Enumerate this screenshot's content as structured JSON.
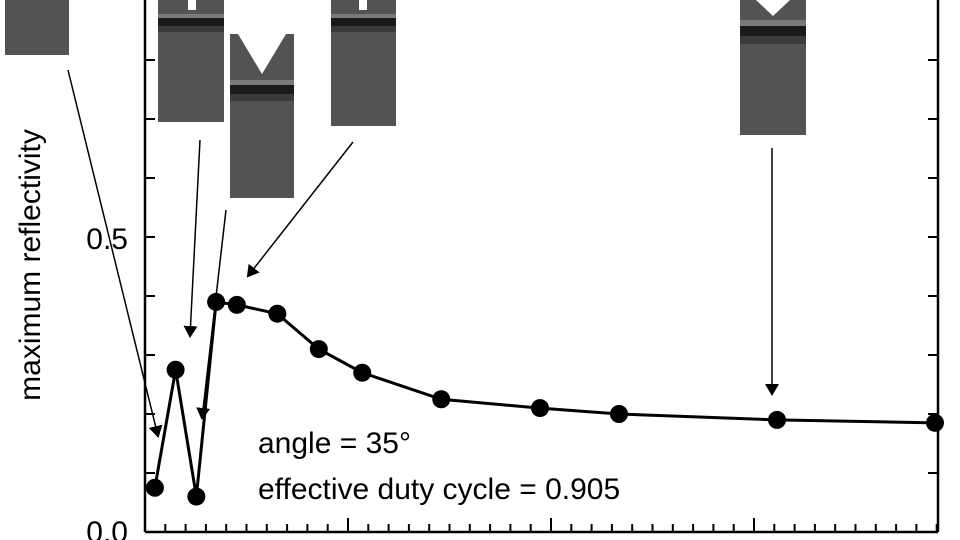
{
  "chart_data": {
    "type": "line",
    "title": "",
    "xlabel": "",
    "ylabel": "maximum reflectivity",
    "ylim": [
      0,
      0.9
    ],
    "y_ticks": [
      {
        "value": 0.5,
        "label": "0.5"
      },
      {
        "value": 0.0,
        "label": "0.0"
      }
    ],
    "series": [
      {
        "x": [
          0.05,
          0.155,
          0.26,
          0.36,
          0.465,
          0.67,
          0.88,
          1.1,
          1.5,
          2.0,
          2.4,
          3.2,
          4.0
        ],
        "values": [
          0.075,
          0.275,
          0.06,
          0.39,
          0.385,
          0.37,
          0.31,
          0.27,
          0.225,
          0.21,
          0.2,
          0.19,
          0.185
        ]
      }
    ],
    "annotations": [
      {
        "text": "angle = 35°"
      },
      {
        "text": "effective duty cycle = 0.905"
      }
    ],
    "grid": false,
    "legend": "none"
  },
  "style": {
    "line_color": "#000000",
    "marker_color": "#000000",
    "inset_dark": "#535353",
    "inset_band": "#1a1a1a"
  }
}
